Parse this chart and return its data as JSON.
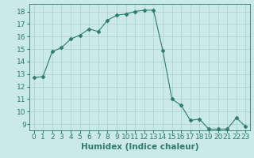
{
  "x": [
    0,
    1,
    2,
    3,
    4,
    5,
    6,
    7,
    8,
    9,
    10,
    11,
    12,
    13,
    14,
    15,
    16,
    17,
    18,
    19,
    20,
    21,
    22,
    23
  ],
  "y": [
    12.7,
    12.8,
    14.8,
    15.1,
    15.8,
    16.1,
    16.6,
    16.4,
    17.3,
    17.7,
    17.8,
    18.0,
    18.1,
    18.1,
    14.9,
    11.0,
    10.5,
    9.3,
    9.4,
    8.6,
    8.6,
    8.6,
    9.5,
    8.8
  ],
  "line_color": "#2d7a6e",
  "marker": "D",
  "marker_size": 2.5,
  "bg_color": "#cce9e9",
  "grid_color": "#aed4d4",
  "xlabel": "Humidex (Indice chaleur)",
  "ylabel_ticks": [
    9,
    10,
    11,
    12,
    13,
    14,
    15,
    16,
    17,
    18
  ],
  "ylim": [
    8.5,
    18.6
  ],
  "xlim": [
    -0.5,
    23.5
  ],
  "xtick_labels": [
    "0",
    "1",
    "2",
    "3",
    "4",
    "5",
    "6",
    "7",
    "8",
    "9",
    "10",
    "11",
    "12",
    "13",
    "14",
    "15",
    "16",
    "17",
    "18",
    "19",
    "20",
    "21",
    "22",
    "23"
  ],
  "xlabel_fontsize": 7.5,
  "tick_fontsize": 6.5
}
